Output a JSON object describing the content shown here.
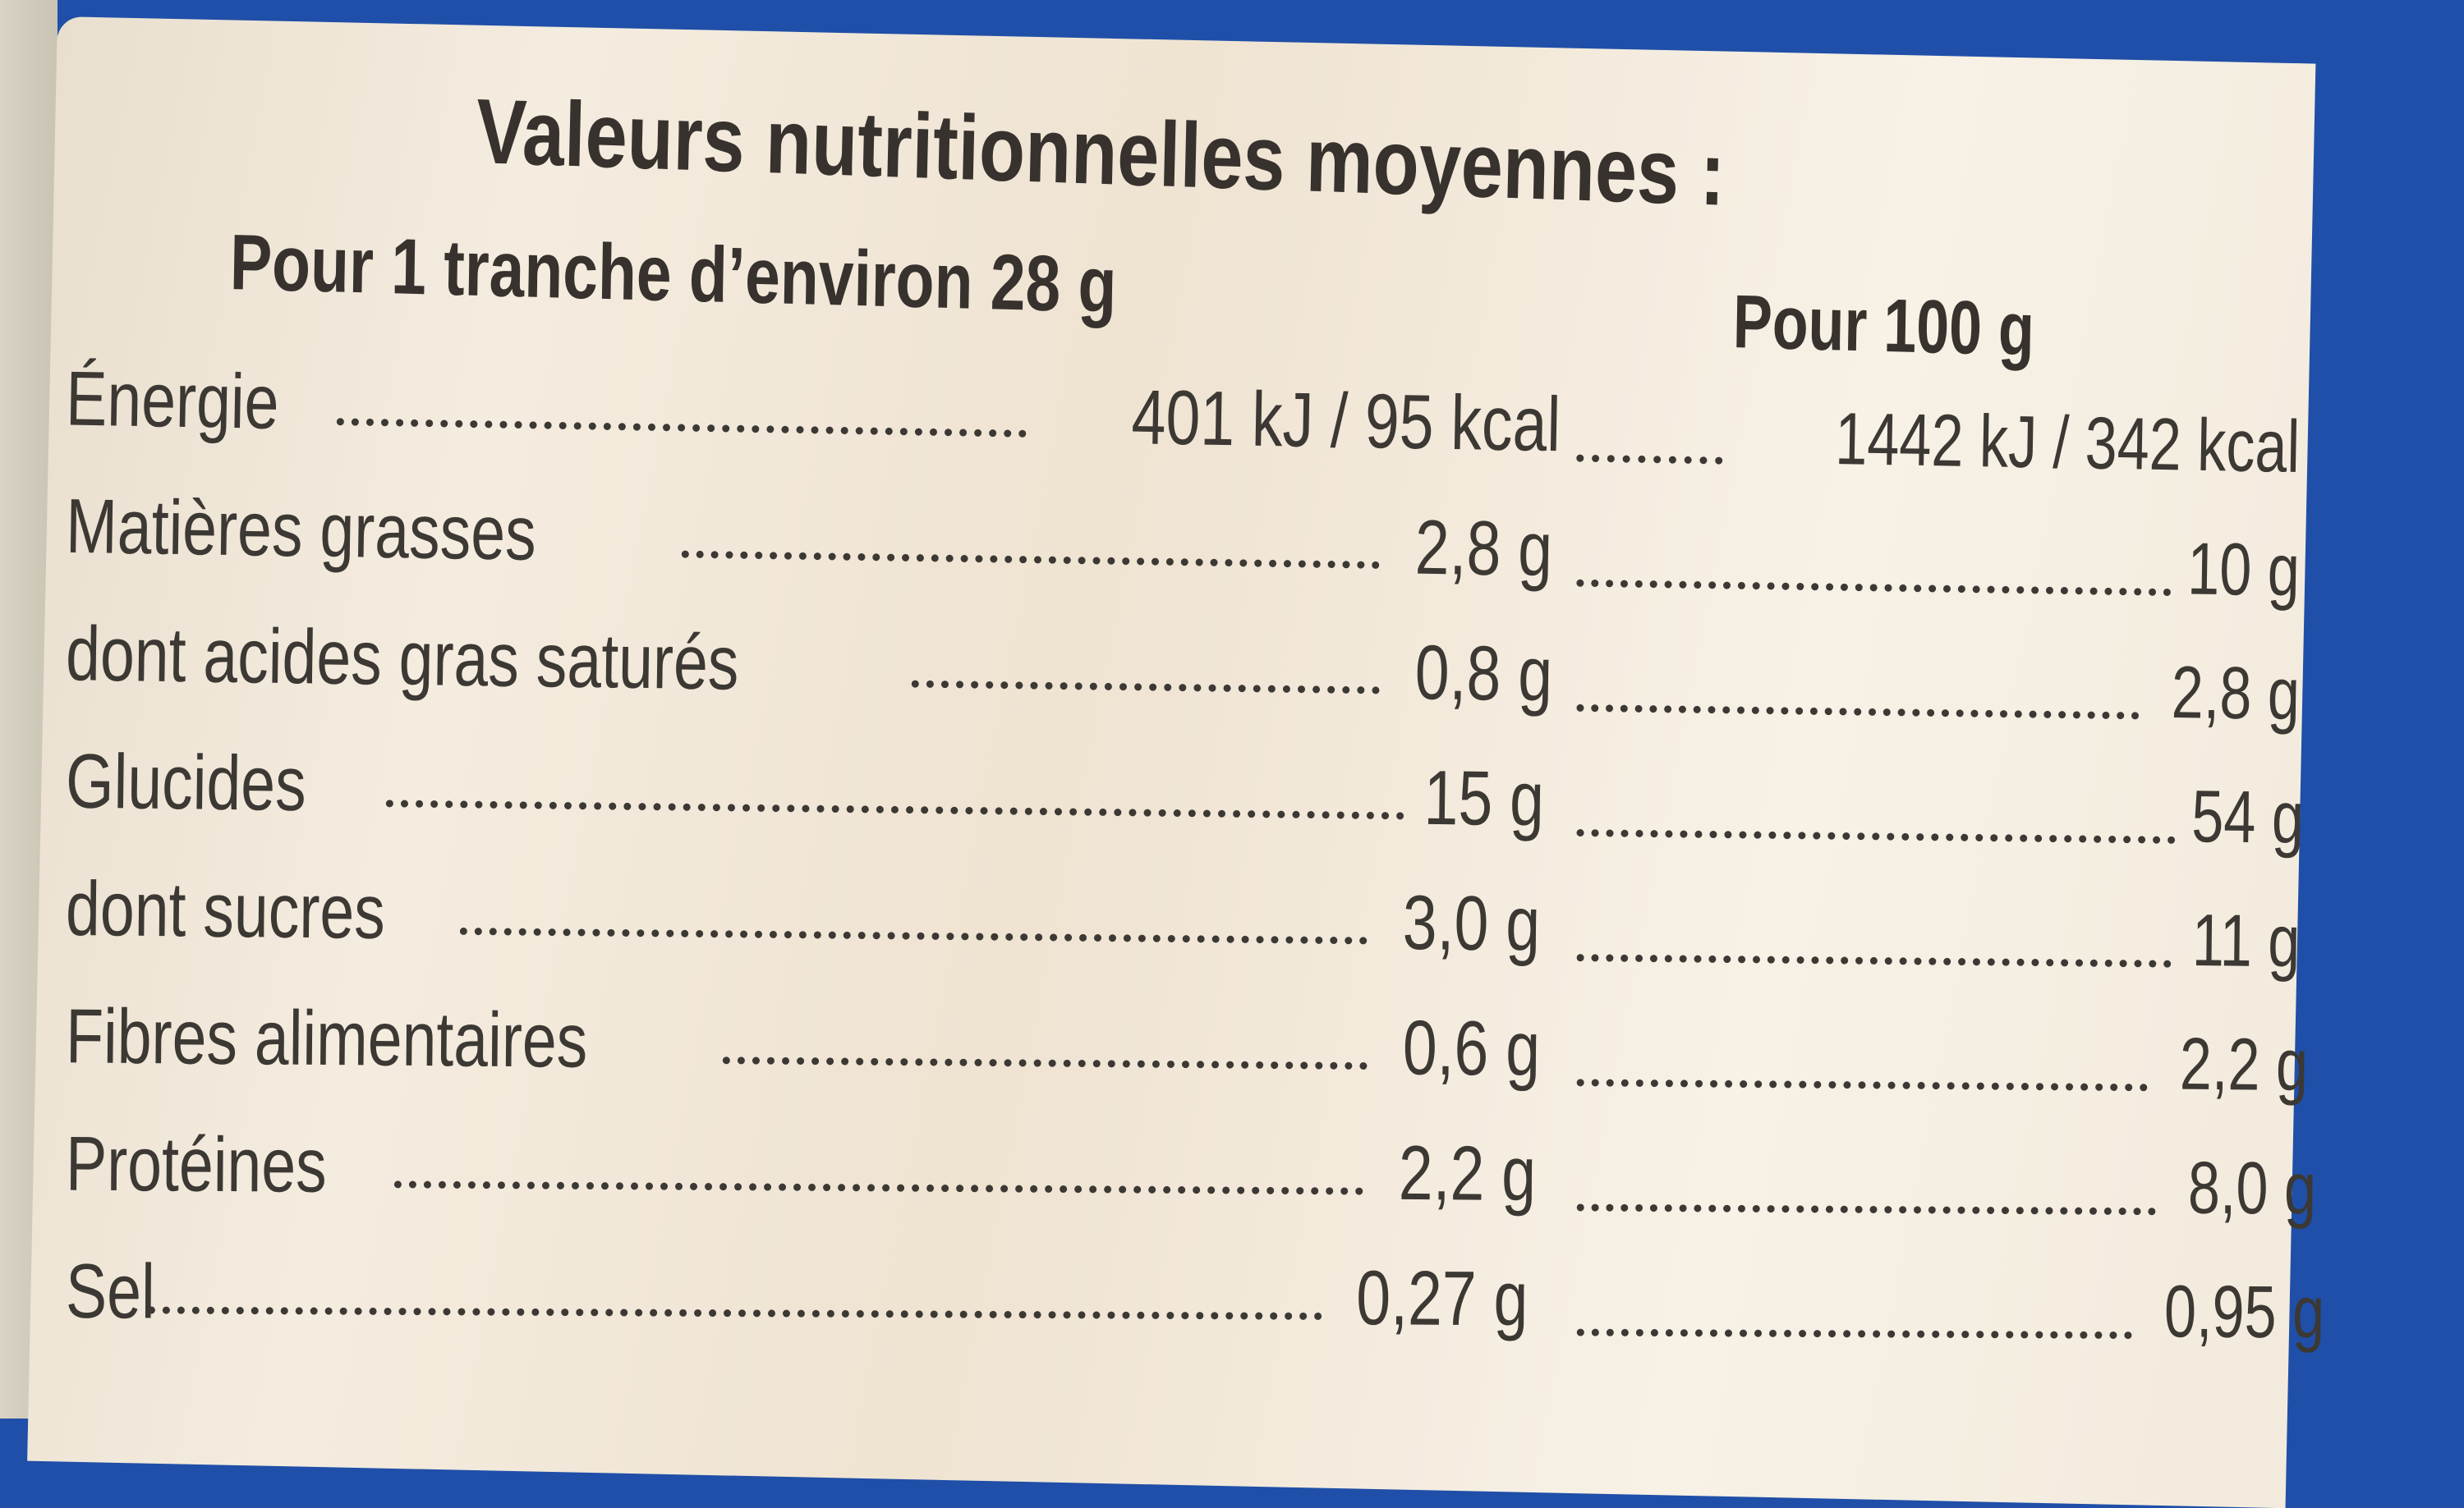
{
  "label": {
    "title": "Valeurs nutritionnelles moyennes :",
    "column_headers": [
      "Pour 1 tranche d’environ 28 g",
      "Pour 100 g"
    ],
    "rows": [
      {
        "name": "Énergie",
        "per_slice": "401 kJ / 95 kcal",
        "per_100g": "1442 kJ / 342 kcal"
      },
      {
        "name": "Matières grasses",
        "per_slice": "2,8 g",
        "per_100g": "10 g"
      },
      {
        "name": "dont acides gras saturés",
        "per_slice": "0,8 g",
        "per_100g": "2,8 g"
      },
      {
        "name": "Glucides",
        "per_slice": "15 g",
        "per_100g": "54 g"
      },
      {
        "name": "dont sucres",
        "per_slice": "3,0 g",
        "per_100g": "11 g"
      },
      {
        "name": "Fibres alimentaires",
        "per_slice": "0,6 g",
        "per_100g": "2,2 g"
      },
      {
        "name": "Protéines",
        "per_slice": "2,2 g",
        "per_100g": "8,0 g"
      },
      {
        "name": "Sel",
        "per_slice": "0,27 g",
        "per_100g": "0,95 g"
      }
    ]
  },
  "colors": {
    "packaging_blue": "#1f4fa8",
    "label_cream": "#f4ecdf",
    "text": "#37322d"
  }
}
